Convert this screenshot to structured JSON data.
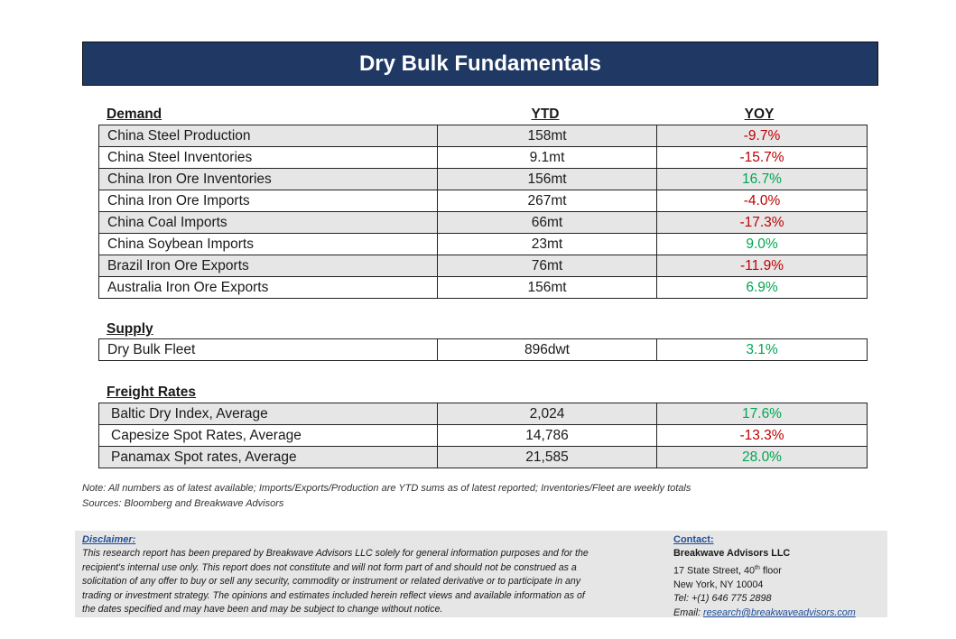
{
  "title": "Dry Bulk Fundamentals",
  "columns": {
    "ytd": "YTD",
    "yoy": "YOY"
  },
  "sections": {
    "demand": {
      "label": "Demand",
      "rows": [
        {
          "name": "China Steel Production",
          "ytd": "158mt",
          "yoy": "-9.7%"
        },
        {
          "name": "China Steel Inventories",
          "ytd": "9.1mt",
          "yoy": "-15.7%"
        },
        {
          "name": "China Iron Ore Inventories",
          "ytd": "156mt",
          "yoy": "16.7%"
        },
        {
          "name": "China Iron Ore Imports",
          "ytd": "267mt",
          "yoy": "-4.0%"
        },
        {
          "name": "China Coal Imports",
          "ytd": "66mt",
          "yoy": "-17.3%"
        },
        {
          "name": "China Soybean Imports",
          "ytd": "23mt",
          "yoy": "9.0%"
        },
        {
          "name": "Brazil Iron Ore Exports",
          "ytd": "76mt",
          "yoy": "-11.9%"
        },
        {
          "name": "Australia Iron Ore Exports",
          "ytd": "156mt",
          "yoy": "6.9%"
        }
      ]
    },
    "supply": {
      "label": "Supply",
      "rows": [
        {
          "name": "Dry Bulk Fleet",
          "ytd": "896dwt",
          "yoy": "3.1%"
        }
      ]
    },
    "freight": {
      "label": "Freight Rates",
      "rows": [
        {
          "name": "Baltic Dry Index, Average",
          "ytd": "2,024",
          "yoy": "17.6%"
        },
        {
          "name": "Capesize Spot Rates, Average",
          "ytd": "14,786",
          "yoy": "-13.3%"
        },
        {
          "name": "Panamax Spot rates, Average",
          "ytd": "21,585",
          "yoy": "28.0%"
        }
      ]
    }
  },
  "colors": {
    "header_bg": "#1f3864",
    "negative": "#c00000",
    "positive": "#00a651",
    "row_shade": "#e6e6e6"
  },
  "notes": {
    "note": "Note:  All numbers as of latest available; Imports/Exports/Production are YTD sums as of latest reported; Inventories/Fleet are weekly totals",
    "sources": "Sources: Bloomberg and Breakwave Advisors"
  },
  "disclaimer": {
    "heading": "Disclaimer:",
    "lines": [
      "This research report has been prepared by Breakwave Advisors LLC solely for general information purposes and for the",
      "recipient's internal use only. This report does not constitute and will not form part of and should not be construed as a",
      "solicitation of any offer to buy or sell any security, commodity or instrument or related derivative or to participate in any",
      "trading or investment strategy. The opinions and estimates included herein reflect views and available information as of",
      "the dates specified and may have been and may be subject to change without notice."
    ]
  },
  "contact": {
    "heading": "Contact:",
    "company": "Breakwave Advisors LLC",
    "street": "17 State Street, 40",
    "street_sup": "th",
    "street_suffix": " floor",
    "city": "New York, NY 10004",
    "tel": "Tel: +(1) 646 775 2898",
    "email_label": "Email: ",
    "email": "research@breakwaveadvisors.com"
  }
}
